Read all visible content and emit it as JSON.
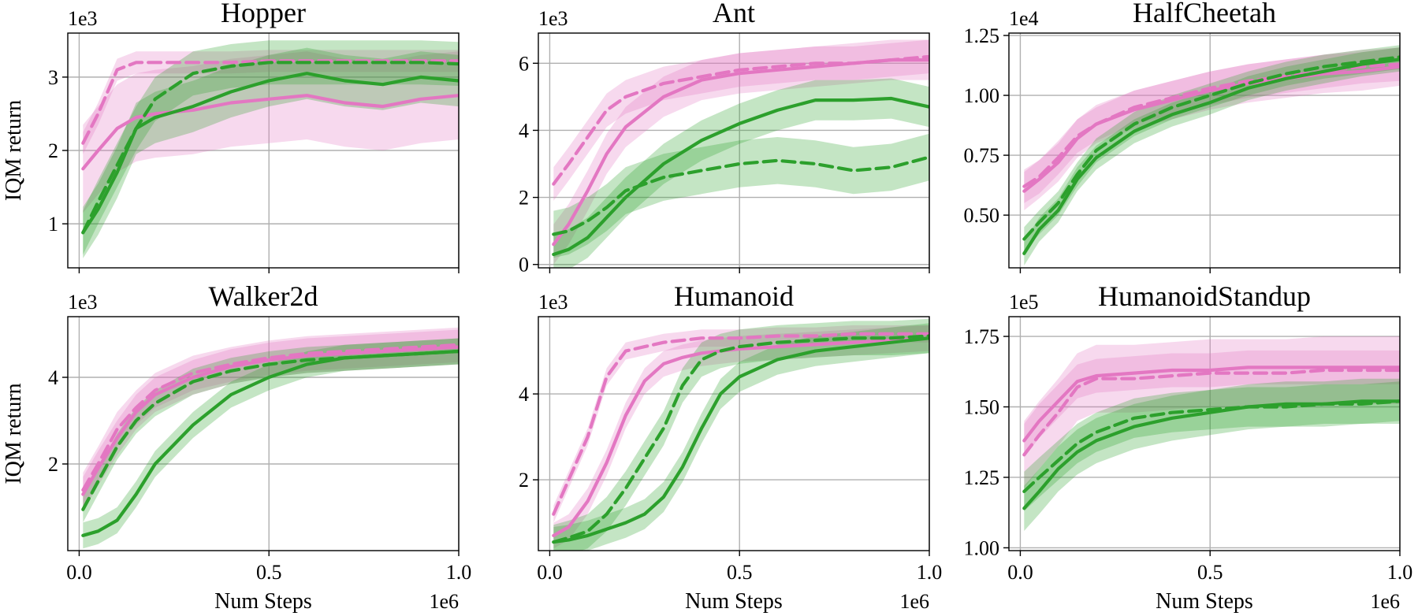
{
  "colors": {
    "pink": "#e377c2",
    "green": "#2ca02c"
  },
  "chart_data": [
    {
      "type": "line",
      "title": "Hopper",
      "xlabel": "",
      "ylabel": "IQM return",
      "x_exponent": "1e6",
      "y_exponent": "1e3",
      "xlim": [
        -0.03,
        1.0
      ],
      "ylim": [
        0.4,
        3.6
      ],
      "xticks": [
        0.0,
        0.5,
        1.0
      ],
      "xtick_labels": [
        "0.0",
        "0.5",
        "1.0"
      ],
      "show_xtick_labels": false,
      "yticks": [
        1,
        2,
        3
      ],
      "ytick_labels": [
        "1",
        "2",
        "3"
      ],
      "x": [
        0.01,
        0.05,
        0.1,
        0.15,
        0.2,
        0.3,
        0.4,
        0.5,
        0.6,
        0.7,
        0.8,
        0.9,
        1.0
      ],
      "series": [
        {
          "name": "pink-solid",
          "color": "pink",
          "dash": false,
          "values": [
            1.75,
            2.0,
            2.3,
            2.45,
            2.5,
            2.55,
            2.65,
            2.7,
            2.75,
            2.65,
            2.6,
            2.7,
            2.75
          ],
          "band": 0.6
        },
        {
          "name": "pink-dashed",
          "color": "pink",
          "dash": true,
          "values": [
            2.1,
            2.5,
            3.1,
            3.2,
            3.2,
            3.2,
            3.2,
            3.22,
            3.22,
            3.22,
            3.22,
            3.22,
            3.22
          ],
          "band": 0.15
        },
        {
          "name": "green-solid",
          "color": "green",
          "dash": false,
          "values": [
            0.88,
            1.2,
            1.7,
            2.3,
            2.45,
            2.6,
            2.8,
            2.95,
            3.05,
            2.95,
            2.9,
            3.0,
            2.95
          ],
          "band": 0.35
        },
        {
          "name": "green-dashed",
          "color": "green",
          "dash": true,
          "values": [
            0.88,
            1.3,
            1.8,
            2.3,
            2.7,
            3.05,
            3.15,
            3.2,
            3.2,
            3.2,
            3.2,
            3.2,
            3.18
          ],
          "band": 0.3
        }
      ]
    },
    {
      "type": "line",
      "title": "Ant",
      "xlabel": "",
      "ylabel": "",
      "x_exponent": "1e6",
      "y_exponent": "1e3",
      "xlim": [
        -0.03,
        1.0
      ],
      "ylim": [
        -0.1,
        6.9
      ],
      "xticks": [
        0.0,
        0.5,
        1.0
      ],
      "xtick_labels": [
        "0.0",
        "0.5",
        "1.0"
      ],
      "show_xtick_labels": false,
      "yticks": [
        0,
        2,
        4,
        6
      ],
      "ytick_labels": [
        "0",
        "2",
        "4",
        "6"
      ],
      "x": [
        0.01,
        0.05,
        0.1,
        0.15,
        0.2,
        0.3,
        0.4,
        0.5,
        0.6,
        0.7,
        0.8,
        0.9,
        1.0
      ],
      "series": [
        {
          "name": "pink-solid",
          "color": "pink",
          "dash": false,
          "values": [
            0.6,
            1.2,
            2.2,
            3.3,
            4.1,
            5.0,
            5.5,
            5.7,
            5.8,
            5.9,
            6.0,
            6.1,
            6.1
          ],
          "band": 0.6
        },
        {
          "name": "pink-dashed",
          "color": "pink",
          "dash": true,
          "values": [
            2.4,
            3.0,
            3.8,
            4.6,
            5.0,
            5.4,
            5.6,
            5.8,
            5.9,
            6.0,
            6.0,
            6.1,
            6.2
          ],
          "band": 0.5
        },
        {
          "name": "green-solid",
          "color": "green",
          "dash": false,
          "values": [
            0.3,
            0.45,
            0.8,
            1.4,
            2.0,
            3.0,
            3.7,
            4.2,
            4.6,
            4.9,
            4.9,
            4.95,
            4.7
          ],
          "band": 0.6
        },
        {
          "name": "green-dashed",
          "color": "green",
          "dash": true,
          "values": [
            0.9,
            1.0,
            1.3,
            1.7,
            2.2,
            2.6,
            2.8,
            3.0,
            3.1,
            3.0,
            2.8,
            2.9,
            3.2
          ],
          "band": 0.7
        }
      ]
    },
    {
      "type": "line",
      "title": "HalfCheetah",
      "xlabel": "",
      "ylabel": "",
      "x_exponent": "1e6",
      "y_exponent": "1e4",
      "xlim": [
        -0.03,
        1.0
      ],
      "ylim": [
        0.28,
        1.26
      ],
      "xticks": [
        0.0,
        0.5,
        1.0
      ],
      "xtick_labels": [
        "0.0",
        "0.5",
        "1.0"
      ],
      "show_xtick_labels": false,
      "yticks": [
        0.5,
        0.75,
        1.0,
        1.25
      ],
      "ytick_labels": [
        "0.50",
        "0.75",
        "1.00",
        "1.25"
      ],
      "x": [
        0.01,
        0.05,
        0.1,
        0.15,
        0.2,
        0.3,
        0.4,
        0.5,
        0.6,
        0.7,
        0.8,
        0.9,
        1.0
      ],
      "series": [
        {
          "name": "pink-solid",
          "color": "pink",
          "dash": false,
          "values": [
            0.6,
            0.65,
            0.72,
            0.82,
            0.88,
            0.94,
            0.98,
            1.02,
            1.05,
            1.07,
            1.09,
            1.1,
            1.12
          ],
          "band": 0.08
        },
        {
          "name": "pink-dashed",
          "color": "pink",
          "dash": true,
          "values": [
            0.62,
            0.66,
            0.74,
            0.83,
            0.88,
            0.95,
            0.99,
            1.03,
            1.06,
            1.08,
            1.1,
            1.12,
            1.13
          ],
          "band": 0.07
        },
        {
          "name": "green-solid",
          "color": "green",
          "dash": false,
          "values": [
            0.34,
            0.44,
            0.52,
            0.65,
            0.74,
            0.85,
            0.92,
            0.97,
            1.03,
            1.07,
            1.1,
            1.13,
            1.15
          ],
          "band": 0.05
        },
        {
          "name": "green-dashed",
          "color": "green",
          "dash": true,
          "values": [
            0.4,
            0.47,
            0.55,
            0.67,
            0.77,
            0.88,
            0.95,
            1.0,
            1.05,
            1.09,
            1.12,
            1.14,
            1.16
          ],
          "band": 0.05
        }
      ]
    },
    {
      "type": "line",
      "title": "Walker2d",
      "xlabel": "Num Steps",
      "ylabel": "IQM return",
      "x_exponent": "1e6",
      "y_exponent": "1e3",
      "xlim": [
        -0.03,
        1.0
      ],
      "ylim": [
        0.0,
        5.4
      ],
      "xticks": [
        0.0,
        0.5,
        1.0
      ],
      "xtick_labels": [
        "0.0",
        "0.5",
        "1.0"
      ],
      "show_xtick_labels": true,
      "yticks": [
        2,
        4
      ],
      "ytick_labels": [
        "2",
        "4"
      ],
      "x": [
        0.01,
        0.05,
        0.1,
        0.15,
        0.2,
        0.3,
        0.4,
        0.5,
        0.6,
        0.7,
        0.8,
        0.9,
        1.0
      ],
      "series": [
        {
          "name": "pink-solid",
          "color": "pink",
          "dash": false,
          "values": [
            1.3,
            1.9,
            2.6,
            3.2,
            3.6,
            4.0,
            4.25,
            4.4,
            4.5,
            4.55,
            4.6,
            4.65,
            4.7
          ],
          "band": 0.4
        },
        {
          "name": "pink-dashed",
          "color": "pink",
          "dash": true,
          "values": [
            1.4,
            2.0,
            2.8,
            3.3,
            3.7,
            4.1,
            4.3,
            4.45,
            4.55,
            4.6,
            4.65,
            4.7,
            4.75
          ],
          "band": 0.4
        },
        {
          "name": "green-solid",
          "color": "green",
          "dash": false,
          "values": [
            0.35,
            0.45,
            0.7,
            1.3,
            2.0,
            2.9,
            3.6,
            4.0,
            4.3,
            4.45,
            4.5,
            4.55,
            4.6
          ],
          "band": 0.3
        },
        {
          "name": "green-dashed",
          "color": "green",
          "dash": true,
          "values": [
            0.95,
            1.6,
            2.4,
            3.0,
            3.4,
            3.9,
            4.15,
            4.3,
            4.4,
            4.45,
            4.5,
            4.55,
            4.6
          ],
          "band": 0.3
        }
      ]
    },
    {
      "type": "line",
      "title": "Humanoid",
      "xlabel": "Num Steps",
      "ylabel": "",
      "x_exponent": "1e6",
      "y_exponent": "1e3",
      "xlim": [
        -0.03,
        1.0
      ],
      "ylim": [
        0.35,
        5.8
      ],
      "xticks": [
        0.0,
        0.5,
        1.0
      ],
      "xtick_labels": [
        "0.0",
        "0.5",
        "1.0"
      ],
      "show_xtick_labels": true,
      "yticks": [
        2,
        4
      ],
      "ytick_labels": [
        "2",
        "4"
      ],
      "x": [
        0.01,
        0.05,
        0.1,
        0.15,
        0.2,
        0.25,
        0.3,
        0.35,
        0.4,
        0.45,
        0.5,
        0.6,
        0.7,
        0.8,
        0.9,
        1.0
      ],
      "series": [
        {
          "name": "pink-solid",
          "color": "pink",
          "dash": false,
          "values": [
            0.7,
            0.9,
            1.5,
            2.4,
            3.5,
            4.3,
            4.7,
            4.85,
            4.95,
            5.0,
            5.05,
            5.1,
            5.15,
            5.2,
            5.25,
            5.3
          ],
          "band": 0.3
        },
        {
          "name": "pink-dashed",
          "color": "pink",
          "dash": true,
          "values": [
            1.2,
            2.0,
            3.0,
            4.4,
            5.0,
            5.1,
            5.2,
            5.25,
            5.3,
            5.3,
            5.3,
            5.35,
            5.35,
            5.4,
            5.4,
            5.4
          ],
          "band": 0.2
        },
        {
          "name": "green-solid",
          "color": "green",
          "dash": false,
          "values": [
            0.55,
            0.6,
            0.7,
            0.85,
            1.0,
            1.2,
            1.6,
            2.3,
            3.2,
            4.0,
            4.4,
            4.8,
            5.0,
            5.1,
            5.2,
            5.3
          ],
          "band": 0.35
        },
        {
          "name": "green-dashed",
          "color": "green",
          "dash": true,
          "values": [
            0.55,
            0.65,
            0.8,
            1.2,
            1.8,
            2.5,
            3.2,
            4.2,
            4.8,
            5.0,
            5.1,
            5.2,
            5.25,
            5.3,
            5.3,
            5.35
          ],
          "band": 0.4
        }
      ]
    },
    {
      "type": "line",
      "title": "HumanoidStandup",
      "xlabel": "Num Steps",
      "ylabel": "",
      "x_exponent": "1e6",
      "y_exponent": "1e5",
      "xlim": [
        -0.03,
        1.0
      ],
      "ylim": [
        0.99,
        1.82
      ],
      "xticks": [
        0.0,
        0.5,
        1.0
      ],
      "xtick_labels": [
        "0.0",
        "0.5",
        "1.0"
      ],
      "show_xtick_labels": true,
      "yticks": [
        1.0,
        1.25,
        1.5,
        1.75
      ],
      "ytick_labels": [
        "1.00",
        "1.25",
        "1.50",
        "1.75"
      ],
      "x": [
        0.01,
        0.05,
        0.1,
        0.15,
        0.2,
        0.3,
        0.4,
        0.5,
        0.6,
        0.7,
        0.8,
        0.9,
        1.0
      ],
      "series": [
        {
          "name": "pink-solid",
          "color": "pink",
          "dash": false,
          "values": [
            1.38,
            1.45,
            1.52,
            1.59,
            1.61,
            1.62,
            1.63,
            1.63,
            1.64,
            1.64,
            1.64,
            1.64,
            1.64
          ],
          "band": 0.06
        },
        {
          "name": "pink-dashed",
          "color": "pink",
          "dash": true,
          "values": [
            1.33,
            1.4,
            1.48,
            1.57,
            1.6,
            1.6,
            1.61,
            1.62,
            1.62,
            1.62,
            1.63,
            1.63,
            1.63
          ],
          "band": 0.12
        },
        {
          "name": "green-solid",
          "color": "green",
          "dash": false,
          "values": [
            1.14,
            1.2,
            1.28,
            1.34,
            1.38,
            1.43,
            1.46,
            1.48,
            1.5,
            1.51,
            1.51,
            1.52,
            1.52
          ],
          "band": 0.08
        },
        {
          "name": "green-dashed",
          "color": "green",
          "dash": true,
          "values": [
            1.2,
            1.25,
            1.31,
            1.37,
            1.41,
            1.46,
            1.48,
            1.49,
            1.5,
            1.5,
            1.51,
            1.51,
            1.52
          ],
          "band": 0.07
        }
      ]
    }
  ]
}
